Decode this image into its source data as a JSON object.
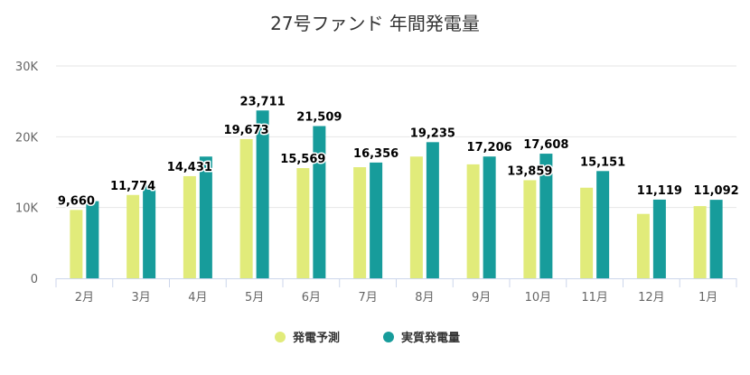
{
  "chart_data": {
    "type": "bar",
    "title": "27号ファンド 年間発電量",
    "categories": [
      "2月",
      "3月",
      "4月",
      "5月",
      "6月",
      "7月",
      "8月",
      "9月",
      "10月",
      "11月",
      "12月",
      "1月"
    ],
    "series": [
      {
        "name": "発電予測",
        "color": "#e1eb7a",
        "values": [
          9660,
          11774,
          14431,
          19673,
          15569,
          15700,
          17200,
          16100,
          13859,
          12800,
          9100,
          10200
        ]
      },
      {
        "name": "実質発電量",
        "color": "#179c9b",
        "values": [
          10900,
          13200,
          17200,
          23711,
          21509,
          16356,
          19235,
          17206,
          17608,
          15151,
          11119,
          11092
        ]
      }
    ],
    "data_labels": [
      {
        "category": "2月",
        "series": 0,
        "text": "9,660"
      },
      {
        "category": "3月",
        "series": 0,
        "text": "11,774"
      },
      {
        "category": "4月",
        "series": 0,
        "text": "14,431"
      },
      {
        "category": "5月",
        "series": 0,
        "text": "19,673"
      },
      {
        "category": "5月",
        "series": 1,
        "text": "23,711"
      },
      {
        "category": "6月",
        "series": 0,
        "text": "15,569"
      },
      {
        "category": "6月",
        "series": 1,
        "text": "21,509"
      },
      {
        "category": "7月",
        "series": 1,
        "text": "16,356"
      },
      {
        "category": "8月",
        "series": 1,
        "text": "19,235"
      },
      {
        "category": "9月",
        "series": 1,
        "text": "17,206"
      },
      {
        "category": "10月",
        "series": 0,
        "text": "13,859"
      },
      {
        "category": "10月",
        "series": 1,
        "text": "17,608"
      },
      {
        "category": "11月",
        "series": 1,
        "text": "15,151"
      },
      {
        "category": "12月",
        "series": 1,
        "text": "11,119"
      },
      {
        "category": "1月",
        "series": 1,
        "text": "11,092"
      }
    ],
    "ylim": [
      0,
      30000
    ],
    "yticks": [
      {
        "value": 0,
        "label": "0"
      },
      {
        "value": 10000,
        "label": "10K"
      },
      {
        "value": 20000,
        "label": "20K"
      },
      {
        "value": 30000,
        "label": "30K"
      }
    ],
    "grid": true,
    "legend_position": "bottom-center"
  }
}
